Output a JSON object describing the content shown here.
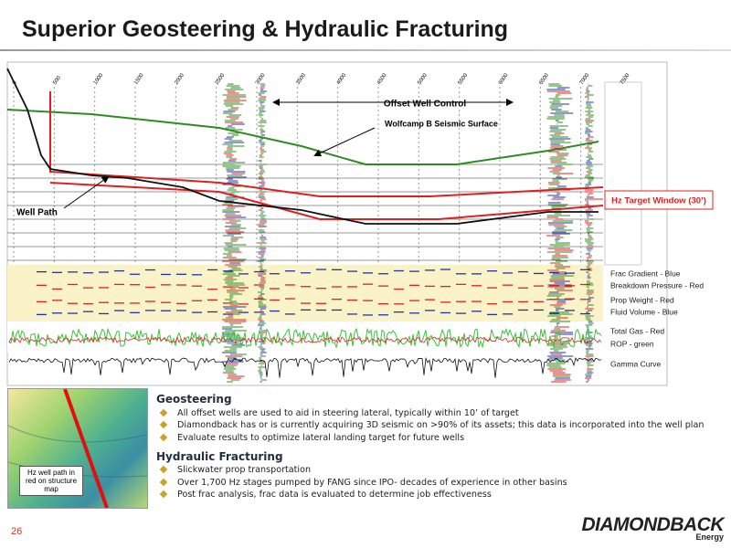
{
  "header": {
    "title": "Superior Geosteering & Hydraulic Fracturing"
  },
  "cross_section": {
    "axis_labels": [
      "0",
      "500",
      "1000",
      "1500",
      "2000",
      "2500",
      "3000",
      "3500",
      "4000",
      "4500",
      "5000",
      "5500",
      "6000",
      "6500",
      "7000",
      "7500"
    ],
    "annotations": {
      "offset_well_control": "Offset Well Control",
      "seismic_surface": "Wolfcamp B Seismic Surface",
      "well_path": "Well Path",
      "target_window": "Hz Target Window (30’)"
    }
  },
  "log_legend": [
    "Frac Gradient - Blue",
    "Breakdown Pressure - Red",
    "Prop Weight - Red",
    "Fluid Volume - Blue",
    "Total Gas - Red",
    "ROP - green",
    "Gamma Curve"
  ],
  "map_caption": "Hz well path in red on structure map",
  "sections": [
    {
      "heading": "Geosteering",
      "bullets": [
        "All offset wells are used to aid in steering lateral, typically within 10’ of target",
        "Diamondback has or is currently acquiring 3D seismic on >90% of its assets; this data is incorporated into the well plan",
        "Evaluate results to optimize lateral landing target for future wells"
      ]
    },
    {
      "heading": "Hydraulic Fracturing",
      "bullets": [
        "Slickwater prop transportation",
        "Over 1,700 Hz stages pumped by FANG since IPO- decades of experience in other basins",
        "Post frac analysis, frac data is evaluated to determine job effectiveness"
      ]
    }
  ],
  "footer": {
    "page": "26",
    "logo": "DIAMONDBACK",
    "logo_sub": "Energy"
  }
}
